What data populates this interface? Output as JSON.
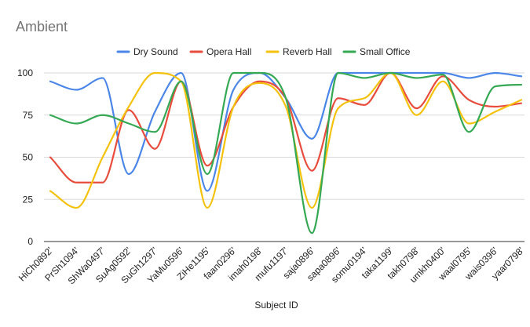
{
  "chart_data": {
    "type": "line",
    "title": "Ambient",
    "xlabel": "Subject ID",
    "ylabel": "",
    "ylim": [
      0,
      100
    ],
    "yticks": [
      0,
      25,
      50,
      75,
      100
    ],
    "grid": true,
    "smooth": true,
    "legend_position": "top",
    "categories": [
      "HiCh0892'",
      "PrSh1094'",
      "ShWa0497'",
      "SuAg0592'",
      "SuGh1297'",
      "YaMu0596'",
      "ZiHe1195'",
      "faan0296'",
      "imah0198'",
      "mufu1197'",
      "saja0896'",
      "sapa0896'",
      "somu0194'",
      "taka1199'",
      "takh0798'",
      "umkh0400'",
      "waal0795'",
      "wais0396'",
      "yaar0798'"
    ],
    "series": [
      {
        "name": "Dry Sound",
        "color": "#4a86e8",
        "values": [
          95,
          90,
          97,
          40,
          77,
          100,
          30,
          90,
          100,
          85,
          61,
          100,
          100,
          100,
          100,
          100,
          97,
          100,
          98
        ]
      },
      {
        "name": "Opera Hall",
        "color": "#e74c3c",
        "values": [
          50,
          35,
          35,
          78,
          55,
          95,
          45,
          80,
          95,
          85,
          42,
          85,
          81,
          100,
          79,
          98,
          84,
          80,
          82
        ]
      },
      {
        "name": "Reverb Hall",
        "color": "#f4c20d",
        "values": [
          30,
          20,
          50,
          80,
          100,
          95,
          20,
          80,
          94,
          80,
          20,
          79,
          85,
          100,
          75,
          95,
          70,
          77,
          84
        ]
      },
      {
        "name": "Small Office",
        "color": "#34a853",
        "values": [
          75,
          70,
          75,
          70,
          65,
          95,
          40,
          100,
          100,
          85,
          5,
          100,
          97,
          100,
          97,
          99,
          65,
          92,
          93
        ]
      }
    ]
  }
}
